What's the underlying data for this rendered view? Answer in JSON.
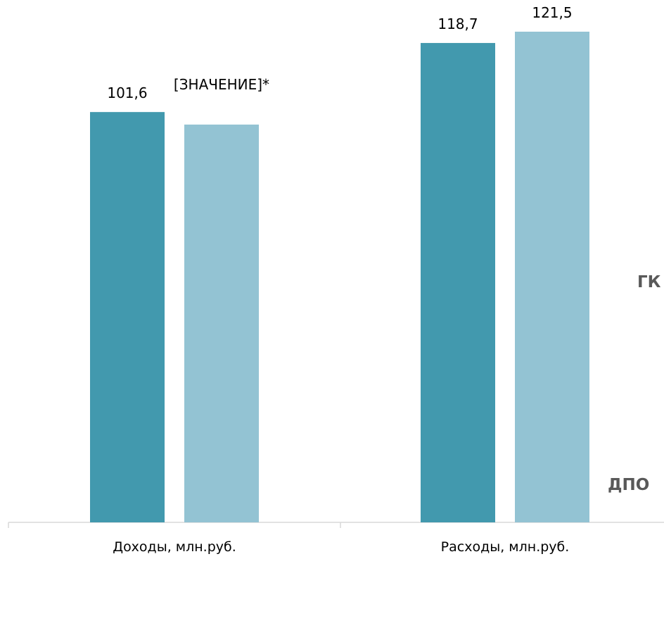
{
  "chart_data": {
    "type": "bar",
    "title": "",
    "xlabel": "",
    "ylabel": "",
    "categories": [
      "Доходы, млн.руб.",
      "Расходы, млн.руб."
    ],
    "series": [
      {
        "name": "ГК",
        "color": "#4299ae",
        "values": [
          101.6,
          118.7
        ],
        "labels": [
          "101,6",
          "118,7"
        ]
      },
      {
        "name": "ДПО",
        "color": "#93c3d3",
        "values": [
          98.5,
          121.5
        ],
        "labels": [
          "[ЗНАЧЕНИЕ]*",
          "121,5"
        ]
      }
    ],
    "ylim": [
      0,
      121.5
    ],
    "grid": false,
    "legend": "right"
  }
}
